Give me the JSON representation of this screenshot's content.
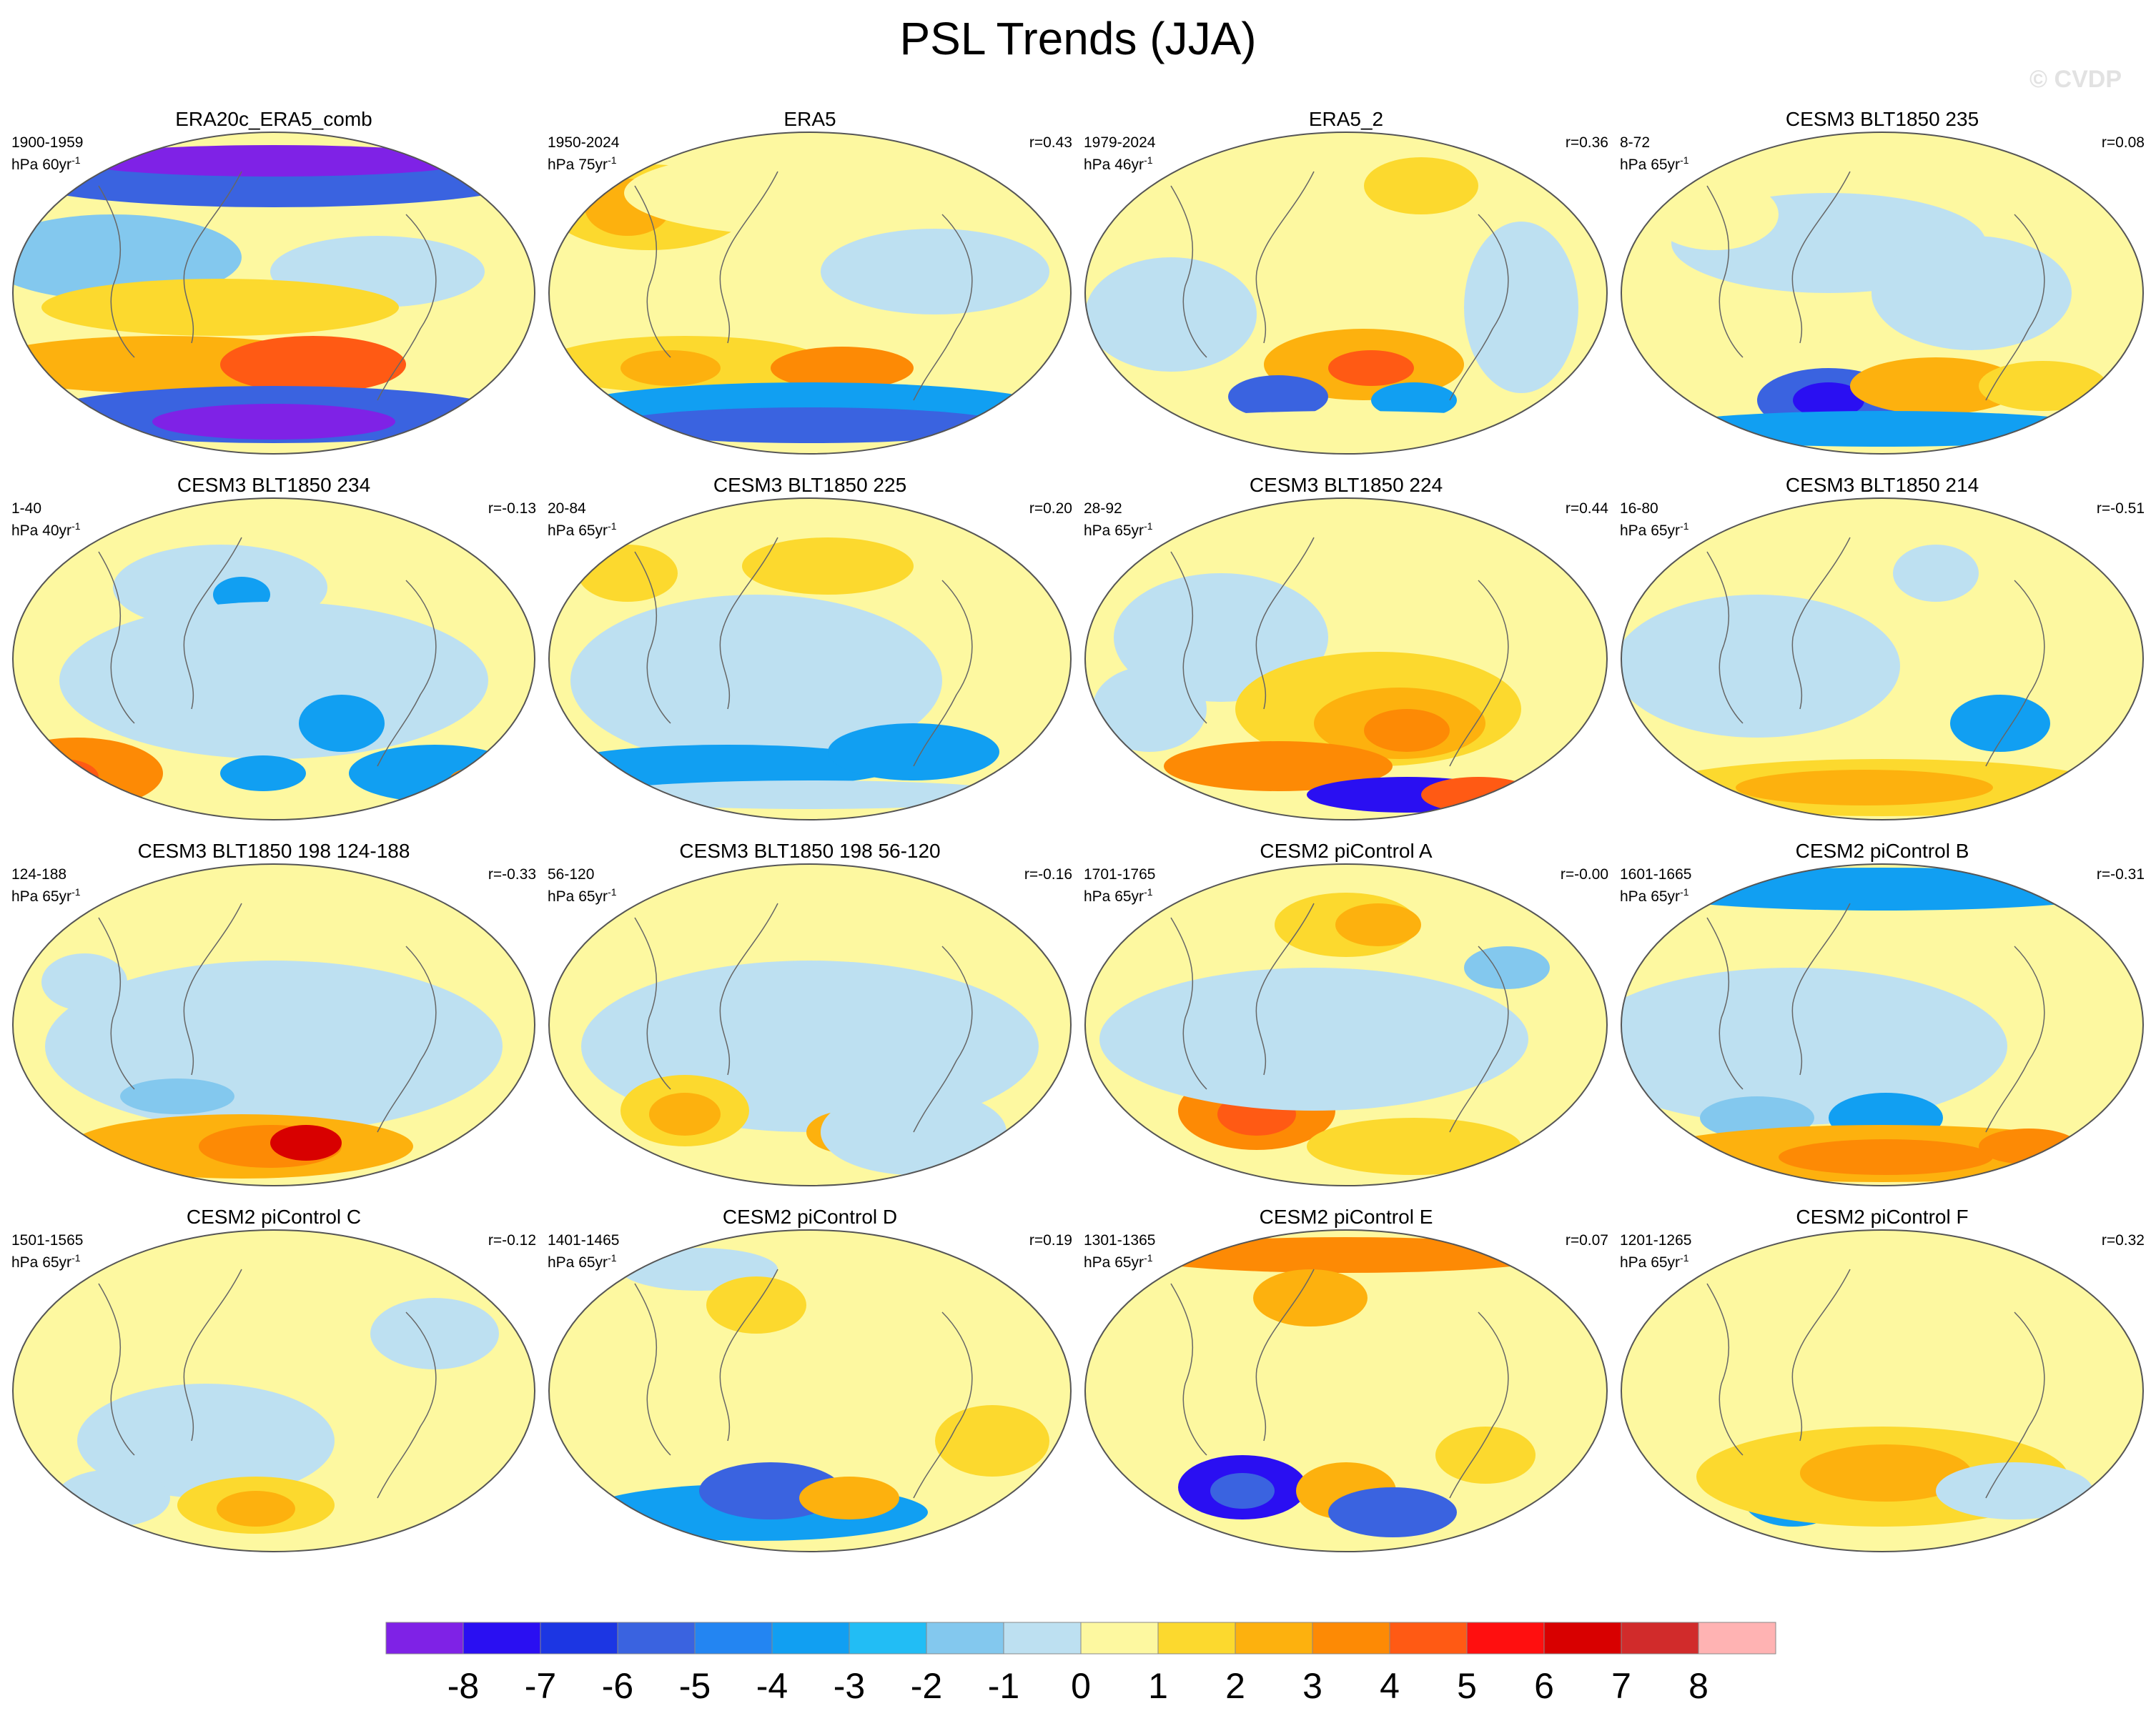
{
  "title": "PSL Trends (JJA)",
  "watermark": "© CVDP",
  "units_prefix": "hPa",
  "panels": [
    {
      "title": "ERA20c_ERA5_comb",
      "years": "1900-1959",
      "trend_length": "60",
      "r": ""
    },
    {
      "title": "ERA5",
      "years": "1950-2024",
      "trend_length": "75",
      "r": "r=0.43"
    },
    {
      "title": "ERA5_2",
      "years": "1979-2024",
      "trend_length": "46",
      "r": "r=0.36"
    },
    {
      "title": "CESM3 BLT1850 235",
      "years": "8-72",
      "trend_length": "65",
      "r": "r=0.08"
    },
    {
      "title": "CESM3 BLT1850 234",
      "years": "1-40",
      "trend_length": "40",
      "r": "r=-0.13"
    },
    {
      "title": "CESM3 BLT1850 225",
      "years": "20-84",
      "trend_length": "65",
      "r": "r=0.20"
    },
    {
      "title": "CESM3 BLT1850 224",
      "years": "28-92",
      "trend_length": "65",
      "r": "r=0.44"
    },
    {
      "title": "CESM3 BLT1850 214",
      "years": "16-80",
      "trend_length": "65",
      "r": "r=-0.51"
    },
    {
      "title": "CESM3 BLT1850 198 124-188",
      "years": "124-188",
      "trend_length": "65",
      "r": "r=-0.33"
    },
    {
      "title": "CESM3 BLT1850 198 56-120",
      "years": "56-120",
      "trend_length": "65",
      "r": "r=-0.16"
    },
    {
      "title": "CESM2 piControl A",
      "years": "1701-1765",
      "trend_length": "65",
      "r": "r=-0.00"
    },
    {
      "title": "CESM2 piControl B",
      "years": "1601-1665",
      "trend_length": "65",
      "r": "r=-0.31"
    },
    {
      "title": "CESM2 piControl C",
      "years": "1501-1565",
      "trend_length": "65",
      "r": "r=-0.12"
    },
    {
      "title": "CESM2 piControl D",
      "years": "1401-1465",
      "trend_length": "65",
      "r": "r=0.19"
    },
    {
      "title": "CESM2 piControl E",
      "years": "1301-1365",
      "trend_length": "65",
      "r": "r=0.07"
    },
    {
      "title": "CESM2 piControl F",
      "years": "1201-1265",
      "trend_length": "65",
      "r": "r=0.32"
    }
  ],
  "colorbar": {
    "colors": [
      "#7f22e6",
      "#2a0ff2",
      "#1c36e3",
      "#3a63e0",
      "#2385f2",
      "#119ff2",
      "#22bdf5",
      "#83c8ee",
      "#bde0f1",
      "#fdf8a0",
      "#fcd92e",
      "#fdb10e",
      "#fd8a05",
      "#ff5a14",
      "#ff0f0f",
      "#d80000",
      "#d12b2b",
      "#ffb3b3"
    ],
    "labels": [
      "-8",
      "-7",
      "-6",
      "-5",
      "-4",
      "-3",
      "-2",
      "-1",
      "0",
      "1",
      "2",
      "3",
      "4",
      "5",
      "6",
      "7",
      "8"
    ]
  }
}
